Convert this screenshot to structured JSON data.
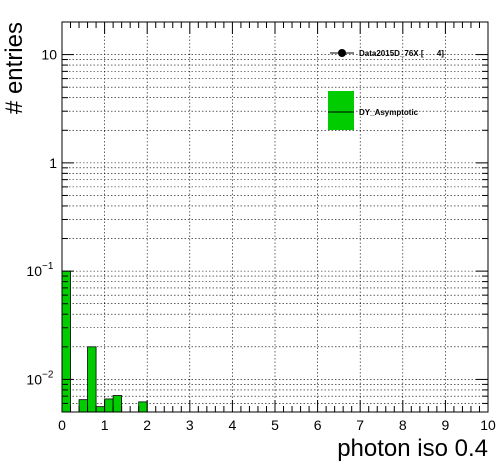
{
  "chart_data": {
    "type": "bar",
    "xlabel": "photon iso 0.4",
    "ylabel": "# entries",
    "xlim": [
      0,
      10
    ],
    "ylim": [
      0.005,
      20
    ],
    "yscale": "log",
    "grid": true,
    "x_ticks": [
      "0",
      "1",
      "2",
      "3",
      "4",
      "5",
      "6",
      "7",
      "8",
      "9",
      "10"
    ],
    "y_ticks": [
      {
        "value": 10,
        "label": "10",
        "sup": ""
      },
      {
        "value": 1,
        "label": "1",
        "sup": ""
      },
      {
        "value": 0.1,
        "label": "10",
        "sup": "−1"
      },
      {
        "value": 0.01,
        "label": "10",
        "sup": "−2"
      }
    ],
    "bin_width": 0.2,
    "series": [
      {
        "name": "DY_Asymptotic",
        "color": "#00cc00",
        "bins": [
          {
            "x": 0.0,
            "value": 0.1
          },
          {
            "x": 0.4,
            "value": 0.0065
          },
          {
            "x": 0.6,
            "value": 0.02
          },
          {
            "x": 0.8,
            "value": 0.0056
          },
          {
            "x": 1.0,
            "value": 0.0066
          },
          {
            "x": 1.2,
            "value": 0.0071
          },
          {
            "x": 1.8,
            "value": 0.0062
          }
        ]
      }
    ],
    "legend": {
      "position": "top-right",
      "entries": [
        {
          "label": "Data2015D_76X [      4]",
          "marker": "point",
          "color": "#000000"
        },
        {
          "label": "DY_Asymptotic",
          "marker": "box",
          "color": "#00cc00"
        }
      ]
    }
  }
}
